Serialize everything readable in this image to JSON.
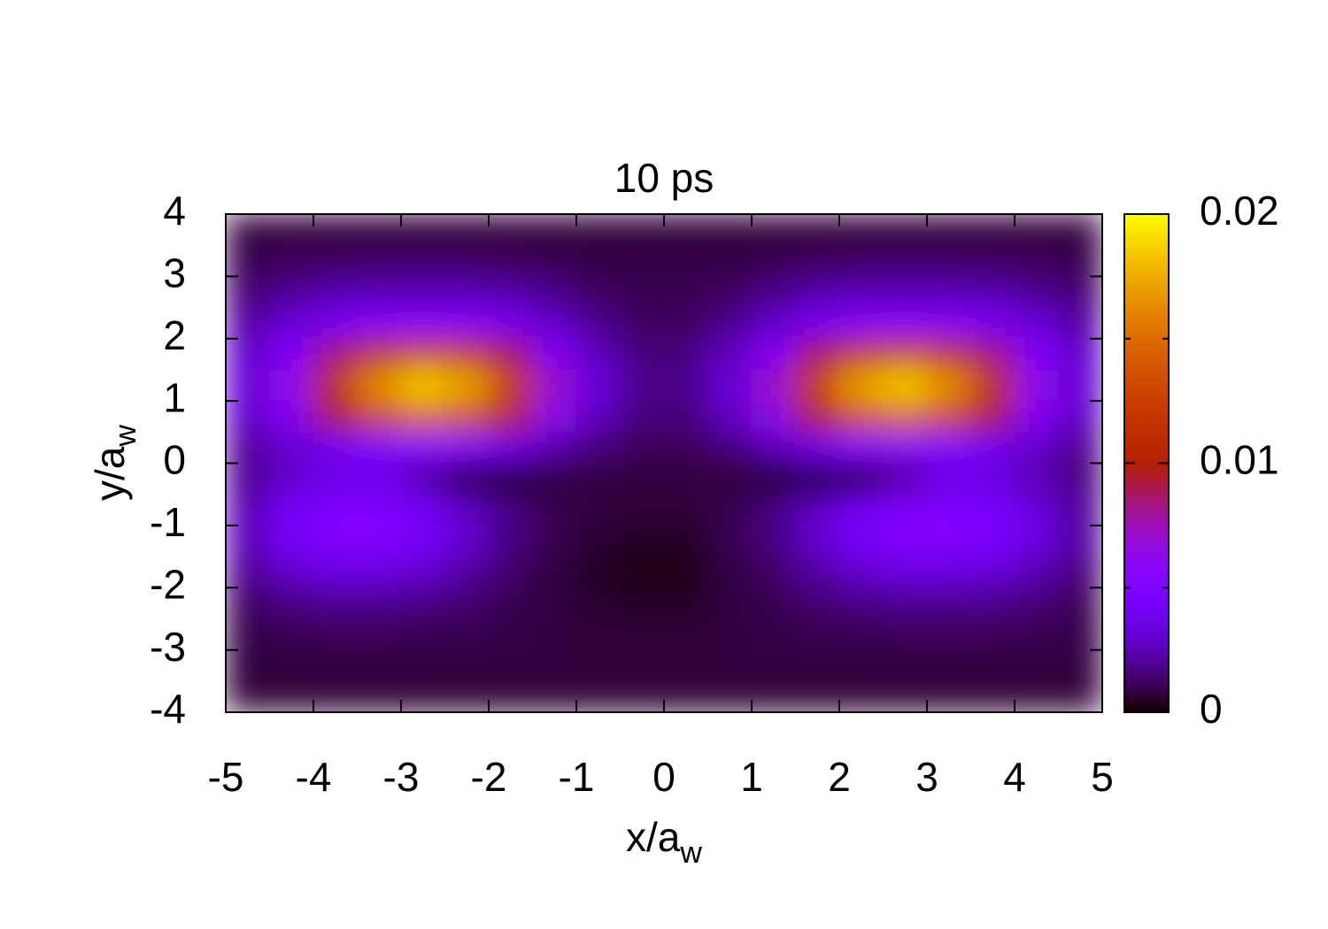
{
  "chart_data": {
    "type": "heatmap",
    "title": "10 ps",
    "xlabel": "x/a",
    "xlabel_subscript": "w",
    "ylabel": "y/a",
    "ylabel_subscript": "w",
    "colormap": "gnuplot",
    "xlim": [
      -5,
      5
    ],
    "ylim": [
      -4,
      4
    ],
    "xticks": [
      -5,
      -4,
      -3,
      -2,
      -1,
      0,
      1,
      2,
      3,
      4,
      5
    ],
    "yticks": [
      -4,
      -3,
      -2,
      -1,
      0,
      1,
      2,
      3,
      4
    ],
    "cblim": [
      0,
      0.02
    ],
    "cbticks": [
      0,
      0.01,
      0.02
    ],
    "cbminorticks": [
      0.005,
      0.015
    ],
    "x": [
      -4.75,
      -4.25,
      -3.75,
      -3.25,
      -2.75,
      -2.25,
      -1.75,
      -1.25,
      -0.75,
      -0.25,
      0.25,
      0.75,
      1.25,
      1.75,
      2.25,
      2.75,
      3.25,
      3.75,
      4.25,
      4.75
    ],
    "y": [
      3.75,
      3.25,
      2.75,
      2.25,
      1.75,
      1.25,
      0.75,
      0.25,
      -0.25,
      -0.75,
      -1.25,
      -1.75,
      -2.25,
      -2.75,
      -3.25,
      -3.75
    ],
    "z": [
      [
        0.0007,
        0.0007,
        0.0007,
        0.0007,
        0.0007,
        0.0007,
        0.0007,
        0.0007,
        0.0007,
        0.0007,
        0.0007,
        0.0007,
        0.0007,
        0.0007,
        0.0007,
        0.0007,
        0.0007,
        0.0007,
        0.0007,
        0.0007
      ],
      [
        0.001,
        0.0011,
        0.0012,
        0.0012,
        0.0012,
        0.0012,
        0.0011,
        0.001,
        0.0009,
        0.0009,
        0.0009,
        0.0009,
        0.001,
        0.0011,
        0.0012,
        0.0012,
        0.0012,
        0.0012,
        0.0011,
        0.001
      ],
      [
        0.0014,
        0.0019,
        0.0023,
        0.0025,
        0.0025,
        0.0025,
        0.0022,
        0.0017,
        0.0012,
        0.001,
        0.001,
        0.0012,
        0.0017,
        0.0022,
        0.0025,
        0.0025,
        0.0025,
        0.0023,
        0.0019,
        0.0014
      ],
      [
        0.0022,
        0.0032,
        0.0044,
        0.0051,
        0.0054,
        0.0052,
        0.0043,
        0.0029,
        0.0018,
        0.0012,
        0.0012,
        0.0018,
        0.0029,
        0.0043,
        0.0052,
        0.0054,
        0.0051,
        0.0044,
        0.0032,
        0.0022
      ],
      [
        0.0029,
        0.0052,
        0.0085,
        0.0115,
        0.0128,
        0.0119,
        0.009,
        0.0054,
        0.0027,
        0.0016,
        0.0016,
        0.0027,
        0.0054,
        0.009,
        0.0119,
        0.0128,
        0.0115,
        0.0085,
        0.0052,
        0.0029
      ],
      [
        0.0033,
        0.0065,
        0.0116,
        0.0166,
        0.0188,
        0.0174,
        0.0127,
        0.0073,
        0.0033,
        0.0018,
        0.0018,
        0.0033,
        0.0073,
        0.0127,
        0.0174,
        0.0188,
        0.0166,
        0.0116,
        0.0065,
        0.0033
      ],
      [
        0.0029,
        0.0055,
        0.0094,
        0.0132,
        0.0149,
        0.0138,
        0.0102,
        0.006,
        0.0028,
        0.0016,
        0.0016,
        0.0028,
        0.006,
        0.0102,
        0.0138,
        0.0149,
        0.0132,
        0.0094,
        0.0055,
        0.0029
      ],
      [
        0.002,
        0.003,
        0.0041,
        0.0049,
        0.0051,
        0.0047,
        0.0037,
        0.0024,
        0.0015,
        0.0011,
        0.0011,
        0.0015,
        0.0026,
        0.0039,
        0.0049,
        0.0053,
        0.0049,
        0.0041,
        0.0029,
        0.0019
      ],
      [
        0.0019,
        0.003,
        0.0036,
        0.0037,
        0.0022,
        0.0004,
        0.0003,
        0.0007,
        0.0008,
        0.0008,
        0.0008,
        0.0007,
        0.0004,
        0.0003,
        0.0006,
        0.002,
        0.0037,
        0.0034,
        0.0025,
        0.0016
      ],
      [
        0.0025,
        0.0042,
        0.0051,
        0.0051,
        0.0042,
        0.0029,
        0.0017,
        0.001,
        0.0008,
        0.0007,
        0.0007,
        0.001,
        0.0017,
        0.0029,
        0.0042,
        0.0051,
        0.0051,
        0.0046,
        0.0034,
        0.0021
      ],
      [
        0.0026,
        0.0044,
        0.0053,
        0.0053,
        0.0044,
        0.0031,
        0.0017,
        0.001,
        0.0006,
        0.0005,
        0.0005,
        0.001,
        0.0017,
        0.0031,
        0.0044,
        0.0053,
        0.0053,
        0.0049,
        0.0035,
        0.0022
      ],
      [
        0.0019,
        0.003,
        0.0035,
        0.0035,
        0.003,
        0.0022,
        0.0013,
        0.0008,
        0.0004,
        0.0003,
        0.0003,
        0.0008,
        0.0013,
        0.0022,
        0.003,
        0.0035,
        0.0035,
        0.0032,
        0.0024,
        0.0016
      ],
      [
        0.0012,
        0.0017,
        0.0019,
        0.0019,
        0.0017,
        0.0014,
        0.001,
        0.0008,
        0.0006,
        0.0005,
        0.0005,
        0.0008,
        0.001,
        0.0014,
        0.0017,
        0.0019,
        0.0019,
        0.0018,
        0.0015,
        0.0011
      ],
      [
        0.0009,
        0.001,
        0.0011,
        0.0011,
        0.001,
        0.001,
        0.0009,
        0.0008,
        0.0007,
        0.0007,
        0.0007,
        0.0008,
        0.0009,
        0.001,
        0.001,
        0.0011,
        0.0011,
        0.0011,
        0.001,
        0.0009
      ],
      [
        0.0008,
        0.0008,
        0.0008,
        0.0008,
        0.0008,
        0.0008,
        0.0008,
        0.0008,
        0.0008,
        0.0008,
        0.0008,
        0.0008,
        0.0008,
        0.0008,
        0.0008,
        0.0008,
        0.0008,
        0.0008,
        0.0008,
        0.0008
      ],
      [
        0.0007,
        0.0007,
        0.0007,
        0.0007,
        0.0007,
        0.0007,
        0.0007,
        0.0007,
        0.0007,
        0.0007,
        0.0007,
        0.0007,
        0.0007,
        0.0007,
        0.0007,
        0.0007,
        0.0007,
        0.0007,
        0.0007,
        0.0007
      ]
    ]
  }
}
